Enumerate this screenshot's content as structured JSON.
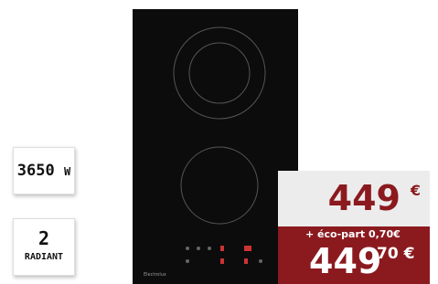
{
  "badges": [
    {
      "value": "3650",
      "unit": "W"
    },
    {
      "value": "2",
      "unit": "RADIANT"
    }
  ],
  "product": {
    "brand": "Electrolux"
  },
  "price": {
    "main": "449",
    "currency": "€",
    "eco_part": "+ éco-part 0,70€",
    "total_whole": "449",
    "total_cents": "70 €"
  }
}
